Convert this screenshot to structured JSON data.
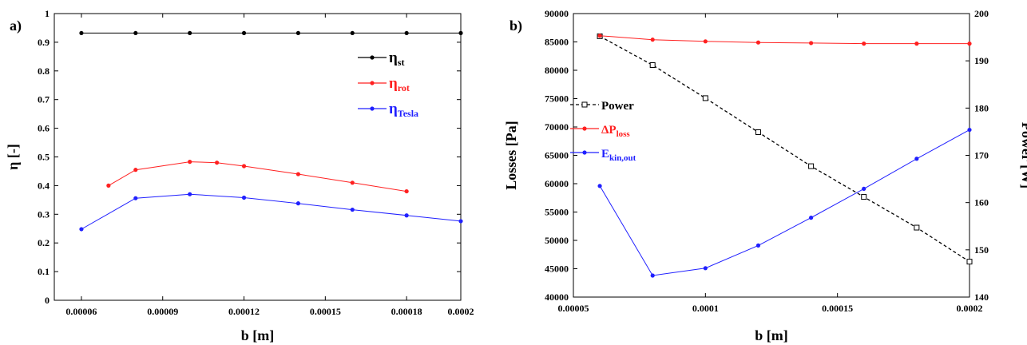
{
  "chart_data": [
    {
      "panel_label": "a)",
      "type": "line",
      "xlabel": "b [m]",
      "ylabel": "η  [-]",
      "xlim": [
        5e-05,
        0.0002
      ],
      "ylim": [
        0,
        1
      ],
      "xticks": [
        "0.00006",
        "0.00009",
        "0.00012",
        "0.00015",
        "0.00018",
        "0.0002"
      ],
      "xtick_values": [
        6e-05,
        9e-05,
        0.00012,
        0.00015,
        0.00018,
        0.0002
      ],
      "yticks": [
        "0",
        "0.1",
        "0.2",
        "0.3",
        "0.4",
        "0.5",
        "0.6",
        "0.7",
        "0.8",
        "0.9",
        "1"
      ],
      "ytick_values": [
        0,
        0.1,
        0.2,
        0.3,
        0.4,
        0.5,
        0.6,
        0.7,
        0.8,
        0.9,
        1
      ],
      "legend_position": "right",
      "series": [
        {
          "name": "η",
          "sub": "st",
          "color": "#000000",
          "x": [
            6e-05,
            8e-05,
            0.0001,
            0.00012,
            0.00014,
            0.00016,
            0.00018,
            0.0002
          ],
          "y": [
            0.932,
            0.932,
            0.932,
            0.932,
            0.932,
            0.932,
            0.932,
            0.932
          ]
        },
        {
          "name": "η",
          "sub": "rot",
          "color": "#ff2020",
          "x": [
            7e-05,
            8e-05,
            0.0001,
            0.00011,
            0.00012,
            0.00014,
            0.00016,
            0.00018
          ],
          "y": [
            0.4,
            0.455,
            0.483,
            0.48,
            0.468,
            0.44,
            0.41,
            0.38
          ]
        },
        {
          "name": "η",
          "sub": "Tesla",
          "color": "#2020ff",
          "x": [
            6e-05,
            8e-05,
            0.0001,
            0.00012,
            0.00014,
            0.00016,
            0.00018,
            0.0002
          ],
          "y": [
            0.248,
            0.356,
            0.37,
            0.358,
            0.338,
            0.316,
            0.296,
            0.276
          ]
        }
      ]
    },
    {
      "panel_label": "b)",
      "type": "line",
      "xlabel": "b [m]",
      "ylabel": "Losses [Pa]",
      "y2label": "Power  [W]",
      "xlim": [
        5e-05,
        0.0002
      ],
      "ylim": [
        40000,
        90000
      ],
      "y2lim": [
        140,
        200
      ],
      "xticks": [
        "0.00005",
        "0.0001",
        "0.00015",
        "0.0002"
      ],
      "xtick_values": [
        5e-05,
        0.0001,
        0.00015,
        0.0002
      ],
      "yticks": [
        "40000",
        "45000",
        "50000",
        "55000",
        "60000",
        "65000",
        "70000",
        "75000",
        "80000",
        "85000",
        "90000"
      ],
      "ytick_values": [
        40000,
        45000,
        50000,
        55000,
        60000,
        65000,
        70000,
        75000,
        80000,
        85000,
        90000
      ],
      "y2ticks": [
        "140",
        "150",
        "160",
        "170",
        "180",
        "190",
        "200"
      ],
      "y2tick_values": [
        140,
        150,
        160,
        170,
        180,
        190,
        200
      ],
      "legend_position": "left",
      "series": [
        {
          "name": "Power",
          "sub": "",
          "prefix": "",
          "color": "#000000",
          "axis": "right",
          "dashed": true,
          "marker": "square",
          "x": [
            6e-05,
            8e-05,
            0.0001,
            0.00012,
            0.00014,
            0.00016,
            0.00018,
            0.0002
          ],
          "y": [
            195.2,
            189.1,
            182.1,
            174.9,
            167.7,
            161.2,
            154.7,
            147.5
          ]
        },
        {
          "name": "P",
          "sub": "loss",
          "prefix": "Δ",
          "color": "#ff2020",
          "axis": "left",
          "dashed": false,
          "marker": "circle",
          "x": [
            6e-05,
            8e-05,
            0.0001,
            0.00012,
            0.00014,
            0.00016,
            0.00018,
            0.0002
          ],
          "y": [
            86100,
            85400,
            85100,
            84900,
            84800,
            84700,
            84700,
            84700
          ]
        },
        {
          "name": "E",
          "sub": "kin,out",
          "prefix": "",
          "color": "#2020ff",
          "axis": "left",
          "dashed": false,
          "marker": "circle",
          "x": [
            6e-05,
            8e-05,
            0.0001,
            0.00012,
            0.00014,
            0.00016,
            0.00018,
            0.0002
          ],
          "y": [
            59600,
            43800,
            45100,
            49100,
            54000,
            59100,
            64400,
            69500
          ]
        }
      ]
    }
  ]
}
